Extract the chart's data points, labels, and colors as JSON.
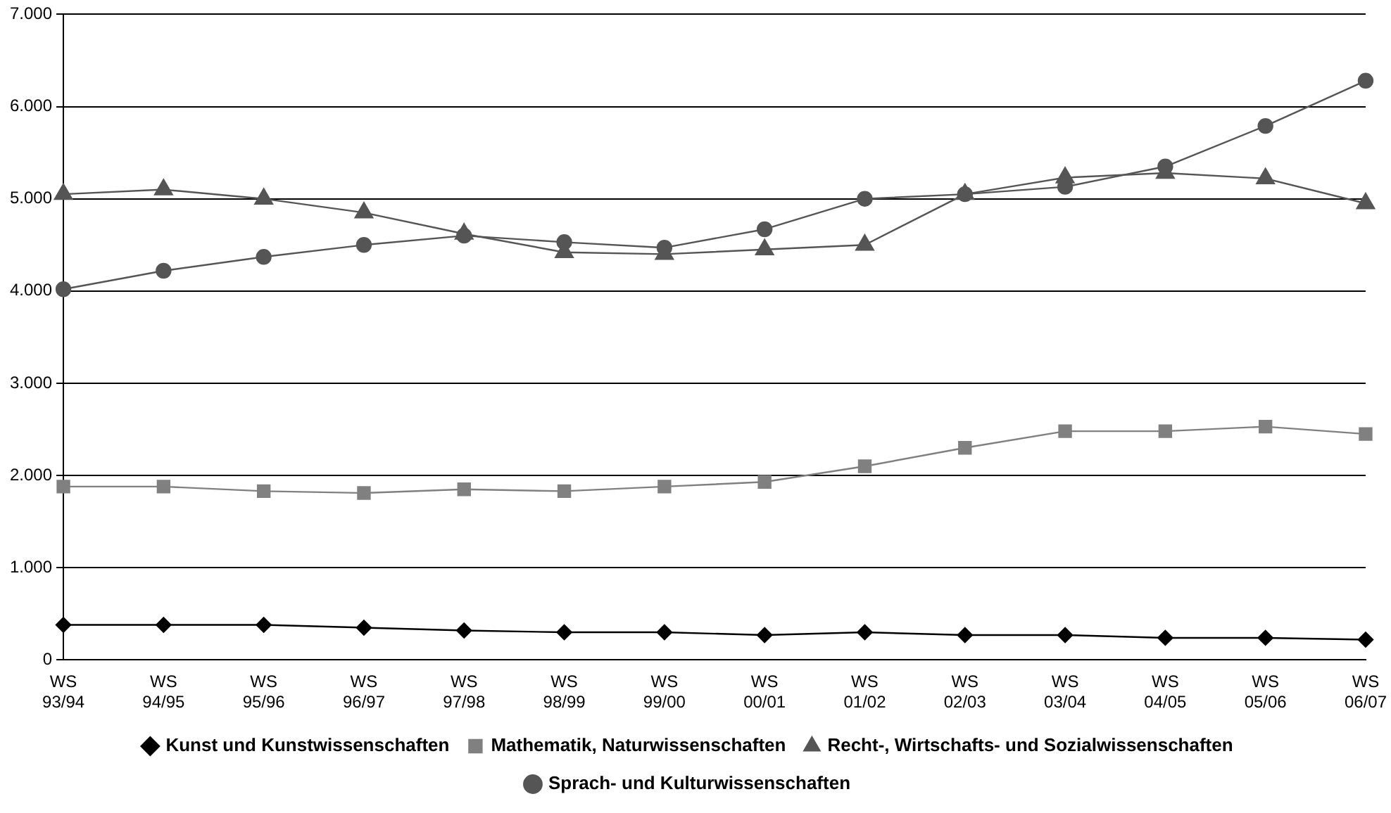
{
  "chart_data": {
    "type": "line",
    "categories": [
      "WS 93/94",
      "WS 94/95",
      "WS 95/96",
      "WS 96/97",
      "WS 97/98",
      "WS 98/99",
      "WS 99/00",
      "WS 00/01",
      "WS 01/02",
      "WS 02/03",
      "WS 03/04",
      "WS 04/05",
      "WS 05/06",
      "WS 06/07"
    ],
    "series": [
      {
        "name": "Kunst und Kunstwissenschaften",
        "color": "#000000",
        "marker": "diamond",
        "values": [
          380,
          380,
          380,
          350,
          320,
          300,
          300,
          270,
          300,
          270,
          270,
          240,
          240,
          220
        ]
      },
      {
        "name": "Mathematik, Naturwissenschaften",
        "color": "#808080",
        "marker": "square",
        "values": [
          1880,
          1880,
          1830,
          1810,
          1850,
          1830,
          1880,
          1930,
          2100,
          2300,
          2480,
          2480,
          2530,
          2450
        ]
      },
      {
        "name": "Recht-, Wirtschafts- und Sozialwissenschaften",
        "color": "#555555",
        "marker": "triangle",
        "values": [
          5050,
          5100,
          5000,
          4850,
          4620,
          4420,
          4400,
          4450,
          4500,
          5050,
          5230,
          5280,
          5220,
          4950
        ]
      },
      {
        "name": "Sprach- und Kulturwissenschaften",
        "color": "#555555",
        "marker": "circle",
        "values": [
          4020,
          4220,
          4370,
          4500,
          4600,
          4530,
          4470,
          4670,
          5000,
          5050,
          5130,
          5350,
          5790,
          6280
        ]
      }
    ],
    "ylim": [
      0,
      7000
    ],
    "yticks": [
      {
        "value": 0,
        "label": "0"
      },
      {
        "value": 1000,
        "label": "1.000"
      },
      {
        "value": 2000,
        "label": "2.000"
      },
      {
        "value": 3000,
        "label": "3.000"
      },
      {
        "value": 4000,
        "label": "4.000"
      },
      {
        "value": 5000,
        "label": "5.000"
      },
      {
        "value": 6000,
        "label": "6.000"
      },
      {
        "value": 7000,
        "label": "7.000"
      }
    ],
    "grid": "y",
    "legend": "bottom"
  }
}
